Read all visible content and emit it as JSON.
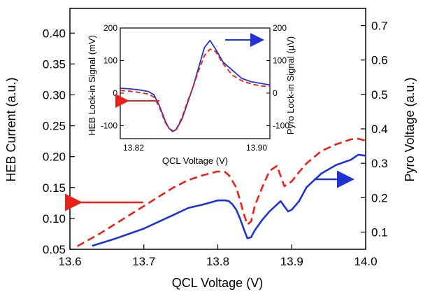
{
  "chart_data": [
    {
      "type": "line",
      "xlabel": "QCL Voltage (V)",
      "ylabel": "HEB Current (a.u.)",
      "y2label": "Pyro Voltage (a.u.)",
      "xlim": [
        13.6,
        14.0
      ],
      "ylim": [
        0.05,
        0.44
      ],
      "y2lim": [
        0.05,
        0.75
      ],
      "xticks": [
        13.6,
        13.7,
        13.8,
        13.9,
        14.0
      ],
      "xtick_labels": [
        "13.6",
        "13.7",
        "13.8",
        "13.9",
        "14.0"
      ],
      "yticks": [
        0.05,
        0.1,
        0.15,
        0.2,
        0.25,
        0.3,
        0.35,
        0.4
      ],
      "ytick_labels": [
        "0.05",
        "0.10",
        "0.15",
        "0.20",
        "0.25",
        "0.30",
        "0.35",
        "0.40"
      ],
      "y2ticks": [
        0.1,
        0.2,
        0.3,
        0.4,
        0.5,
        0.6,
        0.7
      ],
      "y2tick_labels": [
        "0.1",
        "0.2",
        "0.3",
        "0.4",
        "0.5",
        "0.6",
        "0.7"
      ],
      "grid": false,
      "series": [
        {
          "axis": "left",
          "color": "#e8211a",
          "style": "dashed",
          "x": [
            13.61,
            13.64,
            13.66,
            13.68,
            13.7,
            13.72,
            13.74,
            13.76,
            13.78,
            13.8,
            13.81,
            13.815,
            13.82,
            13.825,
            13.83,
            13.835,
            13.84,
            13.845,
            13.85,
            13.86,
            13.87,
            13.88,
            13.89,
            13.9,
            13.91,
            13.92,
            13.94,
            13.96,
            13.98,
            13.99,
            14.0
          ],
          "y": [
            0.055,
            0.075,
            0.09,
            0.105,
            0.12,
            0.135,
            0.15,
            0.162,
            0.17,
            0.176,
            0.175,
            0.17,
            0.16,
            0.15,
            0.13,
            0.108,
            0.09,
            0.095,
            0.12,
            0.15,
            0.177,
            0.185,
            0.152,
            0.16,
            0.175,
            0.189,
            0.209,
            0.22,
            0.228,
            0.229,
            0.226
          ]
        },
        {
          "axis": "right",
          "color": "#1f33d6",
          "style": "solid",
          "x": [
            13.63,
            13.66,
            13.68,
            13.7,
            13.72,
            13.74,
            13.76,
            13.78,
            13.8,
            13.81,
            13.815,
            13.82,
            13.825,
            13.83,
            13.835,
            13.84,
            13.845,
            13.85,
            13.86,
            13.87,
            13.88,
            13.885,
            13.89,
            13.895,
            13.9,
            13.91,
            13.92,
            13.94,
            13.96,
            13.98,
            13.99,
            14.0
          ],
          "y": [
            0.06,
            0.08,
            0.095,
            0.11,
            0.13,
            0.15,
            0.17,
            0.18,
            0.192,
            0.192,
            0.19,
            0.18,
            0.165,
            0.14,
            0.11,
            0.082,
            0.085,
            0.105,
            0.135,
            0.16,
            0.18,
            0.19,
            0.175,
            0.16,
            0.165,
            0.19,
            0.23,
            0.27,
            0.295,
            0.31,
            0.325,
            0.322
          ]
        }
      ]
    },
    {
      "type": "line",
      "inset": true,
      "xlabel": "QCL Voltage (V)",
      "ylabel": "HEB Lock-in Signal (mV)",
      "y2label": "Pyro Lock-in Signal (µV)",
      "xlim": [
        13.82,
        13.9
      ],
      "ylim": [
        -140,
        200
      ],
      "y2lim": [
        -140,
        200
      ],
      "xtick_labels": [
        "13.82",
        "13.90"
      ],
      "yticks": [
        -100,
        0,
        100,
        200
      ],
      "ytick_labels": [
        "-100",
        "0",
        "100",
        "200"
      ],
      "y2tick_labels": [
        "-100",
        "0",
        "100",
        "200"
      ],
      "series": [
        {
          "axis": "left",
          "color": "#1f33d6",
          "style": "solid",
          "x": [
            13.82,
            13.825,
            13.83,
            13.835,
            13.838,
            13.841,
            13.844,
            13.846,
            13.848,
            13.85,
            13.853,
            13.856,
            13.859,
            13.862,
            13.865,
            13.868,
            13.871,
            13.875,
            13.88,
            13.885,
            13.89,
            13.895,
            13.9
          ],
          "y": [
            15,
            13,
            10,
            5,
            -5,
            -40,
            -85,
            -108,
            -118,
            -112,
            -80,
            -30,
            20,
            80,
            140,
            162,
            135,
            95,
            70,
            45,
            35,
            30,
            25
          ]
        },
        {
          "axis": "right",
          "color": "#e8211a",
          "style": "dashed",
          "x": [
            13.82,
            13.825,
            13.83,
            13.835,
            13.838,
            13.841,
            13.844,
            13.846,
            13.848,
            13.85,
            13.853,
            13.856,
            13.859,
            13.862,
            13.865,
            13.868,
            13.871,
            13.875,
            13.88,
            13.885,
            13.89,
            13.895,
            13.9
          ],
          "y": [
            8,
            6,
            2,
            -3,
            -12,
            -45,
            -90,
            -108,
            -115,
            -110,
            -75,
            -25,
            20,
            70,
            115,
            135,
            128,
            90,
            55,
            38,
            28,
            22,
            20
          ]
        }
      ]
    }
  ]
}
